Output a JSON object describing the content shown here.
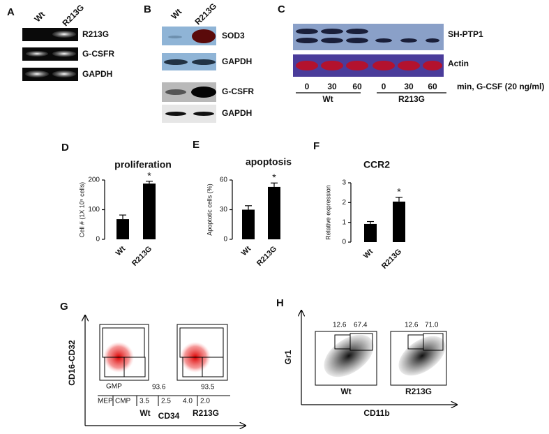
{
  "blots": {
    "A": {
      "label": "A",
      "columns": [
        "Wt",
        "R213G"
      ],
      "rows": [
        "R213G",
        "G-CSFR",
        "GAPDH"
      ]
    },
    "B": {
      "label": "B",
      "columns": [
        "Wt",
        "R213G"
      ],
      "rows": [
        "SOD3",
        "GAPDH",
        "G-CSFR",
        "GAPDH"
      ]
    },
    "C": {
      "label": "C",
      "rows": [
        "SH-PTP1",
        "Actin"
      ],
      "times": [
        "0",
        "30",
        "60",
        "0",
        "30",
        "60"
      ],
      "unit": "min, G-CSF (20 ng/ml)",
      "groups": [
        "Wt",
        "R213G"
      ]
    }
  },
  "chart_data": [
    {
      "type": "bar",
      "label": "D",
      "title": "proliferation",
      "ylabel": "Cell # (1X 10⁵ cells)",
      "categories": [
        "Wt",
        "R213G"
      ],
      "values": [
        68,
        188
      ],
      "errors": [
        14,
        8
      ],
      "annotation": "*",
      "color": "#000000",
      "ylim": [
        0,
        200
      ],
      "yticks": [
        0,
        100,
        200
      ]
    },
    {
      "type": "bar",
      "label": "E",
      "title": "apoptosis",
      "ylabel": "Apoptotic cells (%)",
      "categories": [
        "Wt",
        "R213G"
      ],
      "values": [
        30,
        53
      ],
      "errors": [
        4,
        4
      ],
      "annotation": "*",
      "color": "#000000",
      "ylim": [
        0,
        60
      ],
      "yticks": [
        0,
        30,
        60
      ]
    },
    {
      "type": "bar",
      "label": "F",
      "title": "CCR2",
      "ylabel": "Relative expression",
      "categories": [
        "Wt",
        "R213G"
      ],
      "values": [
        0.92,
        2.05
      ],
      "errors": [
        0.12,
        0.22
      ],
      "annotation": "*",
      "color": "#000000",
      "ylim": [
        0,
        3
      ],
      "yticks": [
        0,
        1,
        2,
        3
      ]
    }
  ],
  "flow": {
    "G": {
      "label": "G",
      "ylabel": "CD16-CD32",
      "xlabel": "CD34",
      "gates": [
        "GMP",
        "MEP",
        "CMP"
      ],
      "samples": [
        {
          "name": "Wt",
          "gmp": "93.6",
          "mep": "3.5",
          "cmp": "2.5"
        },
        {
          "name": "R213G",
          "gmp": "93.5",
          "mep": "4.0",
          "cmp": "2.0"
        }
      ]
    },
    "H": {
      "label": "H",
      "ylabel": "Gr1",
      "xlabel": "CD11b",
      "samples": [
        {
          "name": "Wt",
          "left": "12.6",
          "right": "67.4"
        },
        {
          "name": "R213G",
          "left": "12.6",
          "right": "71.0"
        }
      ]
    }
  }
}
